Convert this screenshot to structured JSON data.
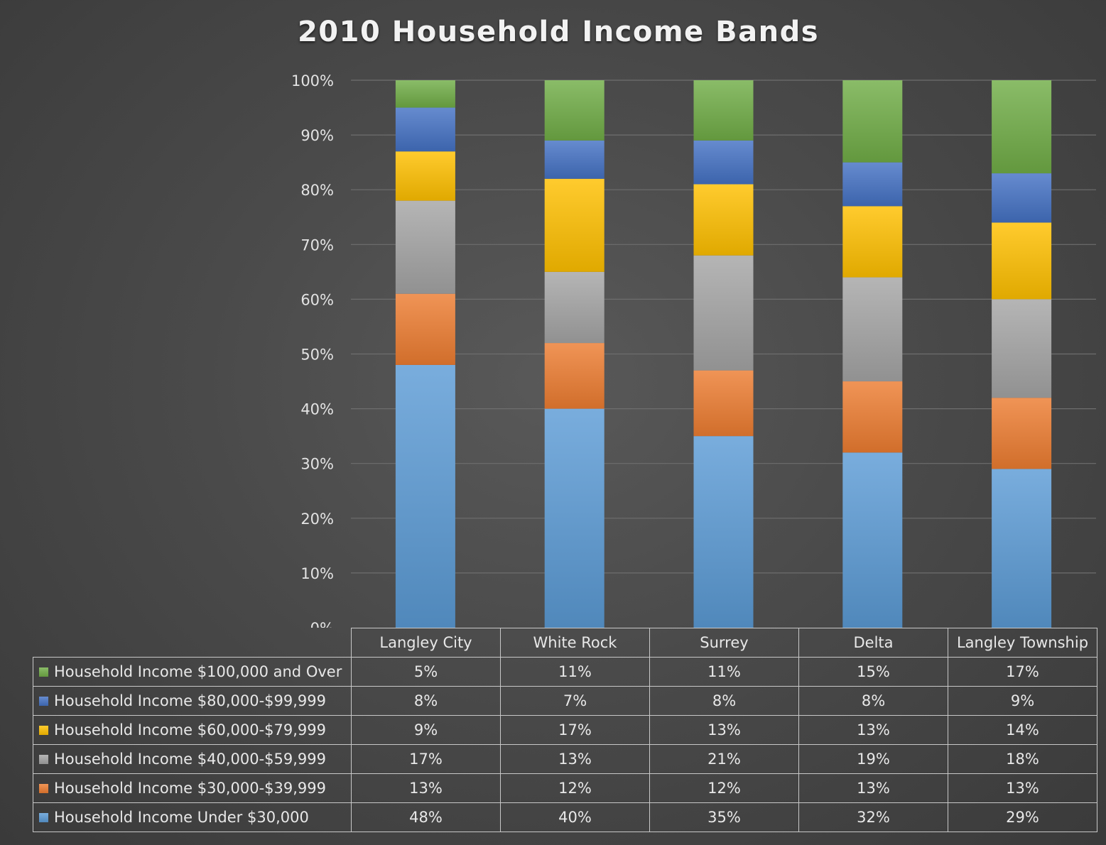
{
  "chart_data": {
    "type": "bar",
    "stacked": true,
    "title": "2010 Household Income Bands",
    "categories": [
      "Langley City",
      "White Rock",
      "Surrey",
      "Delta",
      "Langley Township"
    ],
    "ylim": [
      0,
      100
    ],
    "yticks": [
      "0%",
      "10%",
      "20%",
      "30%",
      "40%",
      "50%",
      "60%",
      "70%",
      "80%",
      "90%",
      "100%"
    ],
    "grid": true,
    "legend": "data table below chart",
    "series": [
      {
        "name": "Household Income Under $30,000",
        "color": "#5b9bd5",
        "values": [
          48,
          40,
          35,
          32,
          29
        ],
        "labels": [
          "48%",
          "40%",
          "35%",
          "32%",
          "29%"
        ]
      },
      {
        "name": "Household Income $30,000-$39,999",
        "color": "#ed7d31",
        "values": [
          13,
          12,
          12,
          13,
          13
        ],
        "labels": [
          "13%",
          "12%",
          "12%",
          "13%",
          "13%"
        ]
      },
      {
        "name": "Household Income $40,000-$59,999",
        "color": "#a5a5a5",
        "values": [
          17,
          13,
          21,
          19,
          18
        ],
        "labels": [
          "17%",
          "13%",
          "21%",
          "19%",
          "18%"
        ]
      },
      {
        "name": "Household Income $60,000-$79,999",
        "color": "#ffc000",
        "values": [
          9,
          17,
          13,
          13,
          14
        ],
        "labels": [
          "9%",
          "17%",
          "13%",
          "13%",
          "14%"
        ]
      },
      {
        "name": "Household Income $80,000-$99,999",
        "color": "#4472c4",
        "values": [
          8,
          7,
          8,
          8,
          9
        ],
        "labels": [
          "8%",
          "7%",
          "8%",
          "8%",
          "9%"
        ]
      },
      {
        "name": "Household Income $100,000 and Over",
        "color": "#70ad47",
        "values": [
          5,
          11,
          11,
          15,
          17
        ],
        "labels": [
          "5%",
          "11%",
          "11%",
          "15%",
          "17%"
        ]
      }
    ]
  }
}
